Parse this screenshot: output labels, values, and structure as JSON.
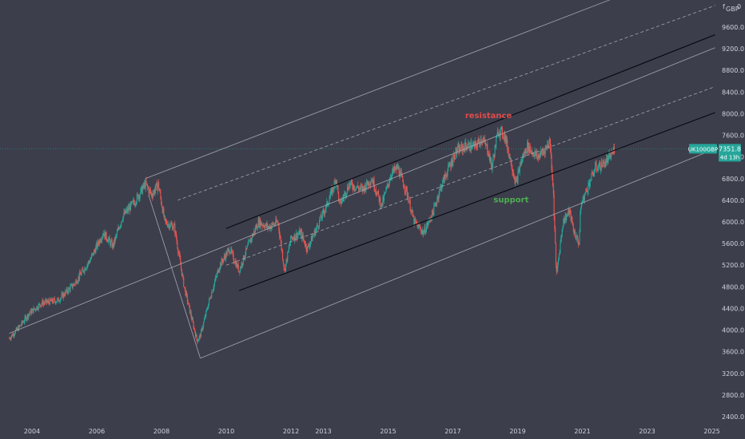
{
  "chart_data": {
    "type": "candlestick",
    "symbol": "UK100GBP",
    "currency_label": "GBP",
    "axis_top_mark": "f",
    "axis_top_mark_2": "0",
    "x_ticks": [
      "2004",
      "2006",
      "2008",
      "2010",
      "2012",
      "2013",
      "2015",
      "2017",
      "2019",
      "2021",
      "2023",
      "2025"
    ],
    "y_ticks": [
      2400,
      2800,
      3200,
      3600,
      4000,
      4400,
      4800,
      5200,
      5600,
      6000,
      6400,
      6800,
      7200,
      7600,
      8000,
      8400,
      8800,
      9200,
      9600
    ],
    "y_range": [
      2210,
      9980
    ],
    "last_price": "7351.8",
    "countdown": "4d 13h",
    "price_path": [
      [
        2003.3,
        3850
      ],
      [
        2003.6,
        4050
      ],
      [
        2003.9,
        4300
      ],
      [
        2004.3,
        4500
      ],
      [
        2004.8,
        4550
      ],
      [
        2005.3,
        4850
      ],
      [
        2005.8,
        5300
      ],
      [
        2006.2,
        5800
      ],
      [
        2006.5,
        5550
      ],
      [
        2006.8,
        6100
      ],
      [
        2007.2,
        6400
      ],
      [
        2007.5,
        6700
      ],
      [
        2007.7,
        6500
      ],
      [
        2007.9,
        6700
      ],
      [
        2008.1,
        6000
      ],
      [
        2008.4,
        5900
      ],
      [
        2008.7,
        4800
      ],
      [
        2008.9,
        4300
      ],
      [
        2009.1,
        3800
      ],
      [
        2009.2,
        3900
      ],
      [
        2009.5,
        4600
      ],
      [
        2009.8,
        5200
      ],
      [
        2010.1,
        5500
      ],
      [
        2010.4,
        5100
      ],
      [
        2010.7,
        5600
      ],
      [
        2011.0,
        6000
      ],
      [
        2011.3,
        5900
      ],
      [
        2011.6,
        6000
      ],
      [
        2011.8,
        5100
      ],
      [
        2012.0,
        5700
      ],
      [
        2012.3,
        5800
      ],
      [
        2012.5,
        5500
      ],
      [
        2012.8,
        5900
      ],
      [
        2013.1,
        6300
      ],
      [
        2013.4,
        6800
      ],
      [
        2013.5,
        6300
      ],
      [
        2013.8,
        6700
      ],
      [
        2014.2,
        6600
      ],
      [
        2014.5,
        6800
      ],
      [
        2014.8,
        6300
      ],
      [
        2015.1,
        6900
      ],
      [
        2015.3,
        7000
      ],
      [
        2015.6,
        6500
      ],
      [
        2015.8,
        6000
      ],
      [
        2016.1,
        5800
      ],
      [
        2016.4,
        6200
      ],
      [
        2016.6,
        6600
      ],
      [
        2016.8,
        6900
      ],
      [
        2017.1,
        7300
      ],
      [
        2017.4,
        7400
      ],
      [
        2017.7,
        7400
      ],
      [
        2017.9,
        7550
      ],
      [
        2018.1,
        7300
      ],
      [
        2018.2,
        7000
      ],
      [
        2018.4,
        7700
      ],
      [
        2018.6,
        7600
      ],
      [
        2018.8,
        7100
      ],
      [
        2018.95,
        6700
      ],
      [
        2019.1,
        7100
      ],
      [
        2019.3,
        7400
      ],
      [
        2019.6,
        7200
      ],
      [
        2019.8,
        7300
      ],
      [
        2020.0,
        7500
      ],
      [
        2020.1,
        6600
      ],
      [
        2020.2,
        5000
      ],
      [
        2020.4,
        6000
      ],
      [
        2020.6,
        6200
      ],
      [
        2020.75,
        5800
      ],
      [
        2020.9,
        5600
      ],
      [
        2020.95,
        6300
      ],
      [
        2021.2,
        6700
      ],
      [
        2021.4,
        7000
      ],
      [
        2021.6,
        7050
      ],
      [
        2021.8,
        7150
      ],
      [
        2022.0,
        7350
      ]
    ],
    "trend_lines": [
      {
        "name": "outer-upper-channel",
        "style": "solid",
        "color": "#a4a7b3",
        "points": [
          [
            2007.5,
            6800
          ],
          [
            2024.0,
            10600
          ]
        ]
      },
      {
        "name": "upper-dashed-channel",
        "style": "dashed",
        "color": "#a4a7b3",
        "points": [
          [
            2008.5,
            6400
          ],
          [
            2025.1,
            10000
          ]
        ]
      },
      {
        "name": "resistance-line",
        "style": "solid",
        "color": "#0b0d14",
        "points": [
          [
            2010.0,
            5880
          ],
          [
            2025.1,
            9460
          ]
        ]
      },
      {
        "name": "middle-channel",
        "style": "solid",
        "color": "#a4a7b3",
        "points": [
          [
            2003.3,
            3940
          ],
          [
            2025.1,
            9220
          ]
        ]
      },
      {
        "name": "mid-dashed-channel",
        "style": "dashed",
        "color": "#a4a7b3",
        "points": [
          [
            2010.0,
            5200
          ],
          [
            2025.1,
            8500
          ]
        ]
      },
      {
        "name": "support-line",
        "style": "solid",
        "color": "#0b0d14",
        "points": [
          [
            2010.4,
            4730
          ],
          [
            2025.1,
            8020
          ]
        ]
      },
      {
        "name": "outer-lower-channel",
        "style": "solid",
        "color": "#a4a7b3",
        "points": [
          [
            2009.2,
            3480
          ],
          [
            2025.1,
            7350
          ]
        ]
      },
      {
        "name": "crash-projection",
        "style": "solid",
        "color": "#a4a7b3",
        "points": [
          [
            2007.6,
            6500
          ],
          [
            2009.2,
            3480
          ]
        ]
      }
    ],
    "annotations": [
      {
        "text": "resistance",
        "color": "#e24b4b",
        "at": [
          2018.1,
          7920
        ]
      },
      {
        "text": "support",
        "color": "#4caf50",
        "at": [
          2018.8,
          6360
        ]
      }
    ],
    "colors": {
      "background": "#3c3e4b",
      "up_candle": "#26a69a",
      "down_candle": "#ef5350",
      "price_label": "#26a69a",
      "price_line": "#26a69a"
    },
    "grid": false
  }
}
